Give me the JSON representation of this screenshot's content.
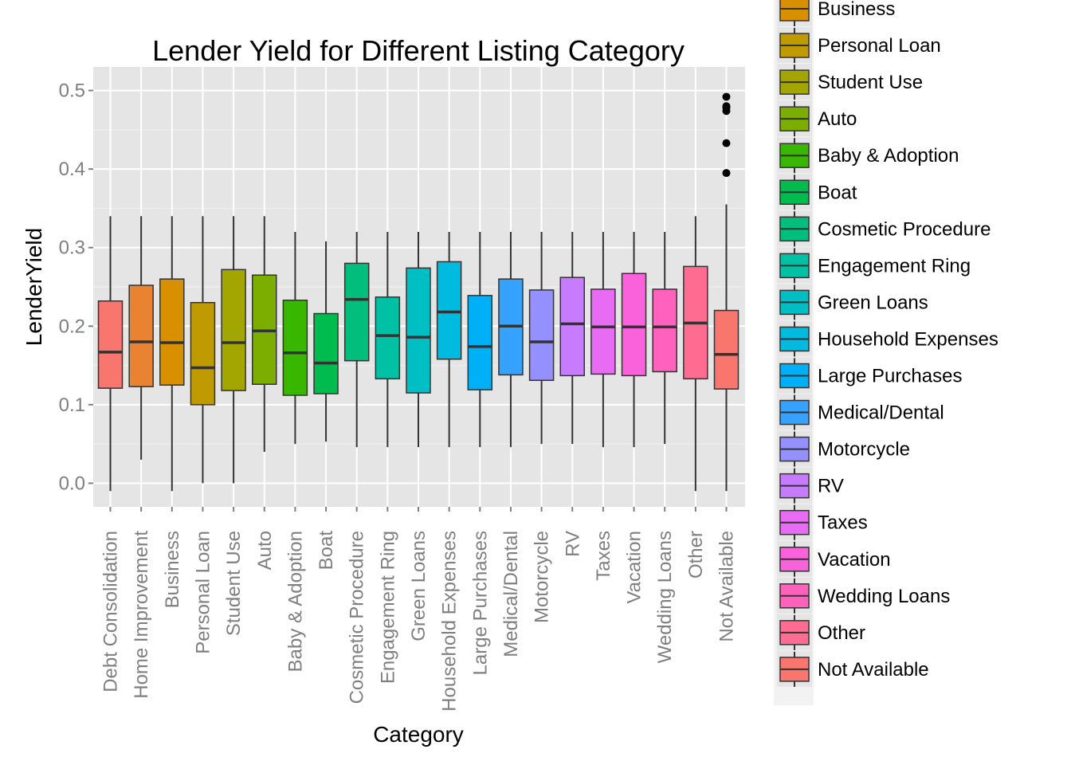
{
  "chart_data": {
    "type": "boxplot",
    "title": "Lender Yield for Different Listing Category",
    "xlabel": "Category",
    "ylabel": "LenderYield",
    "ylim": [
      -0.03,
      0.53
    ],
    "yticks": [
      0.0,
      0.1,
      0.2,
      0.3,
      0.4,
      0.5
    ],
    "ytick_labels": [
      "0.0",
      "0.1",
      "0.2",
      "0.3",
      "0.4",
      "0.5"
    ],
    "grid": true,
    "legend_position": "right",
    "legend_items": [
      "Business",
      "Personal Loan",
      "Student Use",
      "Auto",
      "Baby & Adoption",
      "Boat",
      "Cosmetic Procedure",
      "Engagement Ring",
      "Green Loans",
      "Household Expenses",
      "Large Purchases",
      "Medical/Dental",
      "Motorcycle",
      "RV",
      "Taxes",
      "Vacation",
      "Wedding Loans",
      "Other",
      "Not Available"
    ],
    "categories": [
      {
        "name": "Debt Consolidation",
        "color": "#F8766D",
        "min": -0.01,
        "q1": 0.121,
        "median": 0.167,
        "q3": 0.232,
        "max": 0.34,
        "outliers": []
      },
      {
        "name": "Home Improvement",
        "color": "#EA8331",
        "min": 0.03,
        "q1": 0.123,
        "median": 0.18,
        "q3": 0.252,
        "max": 0.34,
        "outliers": []
      },
      {
        "name": "Business",
        "color": "#D89000",
        "min": -0.01,
        "q1": 0.125,
        "median": 0.179,
        "q3": 0.26,
        "max": 0.34,
        "outliers": []
      },
      {
        "name": "Personal Loan",
        "color": "#C09B00",
        "min": 0.0,
        "q1": 0.1,
        "median": 0.147,
        "q3": 0.23,
        "max": 0.34,
        "outliers": []
      },
      {
        "name": "Student Use",
        "color": "#A3A500",
        "min": 0.0,
        "q1": 0.118,
        "median": 0.179,
        "q3": 0.272,
        "max": 0.34,
        "outliers": []
      },
      {
        "name": "Auto",
        "color": "#7CAE00",
        "min": 0.04,
        "q1": 0.126,
        "median": 0.194,
        "q3": 0.265,
        "max": 0.34,
        "outliers": []
      },
      {
        "name": "Baby & Adoption",
        "color": "#39B600",
        "min": 0.05,
        "q1": 0.112,
        "median": 0.166,
        "q3": 0.233,
        "max": 0.32,
        "outliers": []
      },
      {
        "name": "Boat",
        "color": "#00BB4E",
        "min": 0.053,
        "q1": 0.114,
        "median": 0.153,
        "q3": 0.216,
        "max": 0.308,
        "outliers": []
      },
      {
        "name": "Cosmetic Procedure",
        "color": "#00BF7D",
        "min": 0.046,
        "q1": 0.156,
        "median": 0.234,
        "q3": 0.28,
        "max": 0.32,
        "outliers": []
      },
      {
        "name": "Engagement Ring",
        "color": "#00C1A3",
        "min": 0.046,
        "q1": 0.133,
        "median": 0.188,
        "q3": 0.237,
        "max": 0.32,
        "outliers": []
      },
      {
        "name": "Green Loans",
        "color": "#00BFC4",
        "min": 0.046,
        "q1": 0.115,
        "median": 0.186,
        "q3": 0.274,
        "max": 0.32,
        "outliers": []
      },
      {
        "name": "Household Expenses",
        "color": "#00BAE0",
        "min": 0.046,
        "q1": 0.158,
        "median": 0.218,
        "q3": 0.282,
        "max": 0.32,
        "outliers": []
      },
      {
        "name": "Large Purchases",
        "color": "#00B0F6",
        "min": 0.046,
        "q1": 0.119,
        "median": 0.174,
        "q3": 0.239,
        "max": 0.32,
        "outliers": []
      },
      {
        "name": "Medical/Dental",
        "color": "#35A2FF",
        "min": 0.046,
        "q1": 0.138,
        "median": 0.2,
        "q3": 0.26,
        "max": 0.32,
        "outliers": []
      },
      {
        "name": "Motorcycle",
        "color": "#9590FF",
        "min": 0.05,
        "q1": 0.131,
        "median": 0.18,
        "q3": 0.246,
        "max": 0.32,
        "outliers": []
      },
      {
        "name": "RV",
        "color": "#C77CFF",
        "min": 0.05,
        "q1": 0.137,
        "median": 0.203,
        "q3": 0.262,
        "max": 0.32,
        "outliers": []
      },
      {
        "name": "Taxes",
        "color": "#E76BF3",
        "min": 0.046,
        "q1": 0.139,
        "median": 0.199,
        "q3": 0.247,
        "max": 0.32,
        "outliers": []
      },
      {
        "name": "Vacation",
        "color": "#FA62DB",
        "min": 0.046,
        "q1": 0.137,
        "median": 0.199,
        "q3": 0.267,
        "max": 0.32,
        "outliers": []
      },
      {
        "name": "Wedding Loans",
        "color": "#FF62BC",
        "min": 0.05,
        "q1": 0.142,
        "median": 0.199,
        "q3": 0.247,
        "max": 0.32,
        "outliers": []
      },
      {
        "name": "Other",
        "color": "#FF6C91",
        "min": -0.01,
        "q1": 0.133,
        "median": 0.204,
        "q3": 0.276,
        "max": 0.34,
        "outliers": []
      },
      {
        "name": "Not Available",
        "color": "#F8766D",
        "min": -0.01,
        "q1": 0.12,
        "median": 0.164,
        "q3": 0.22,
        "max": 0.355,
        "outliers": [
          0.395,
          0.433,
          0.474,
          0.478,
          0.48,
          0.492
        ]
      }
    ]
  }
}
